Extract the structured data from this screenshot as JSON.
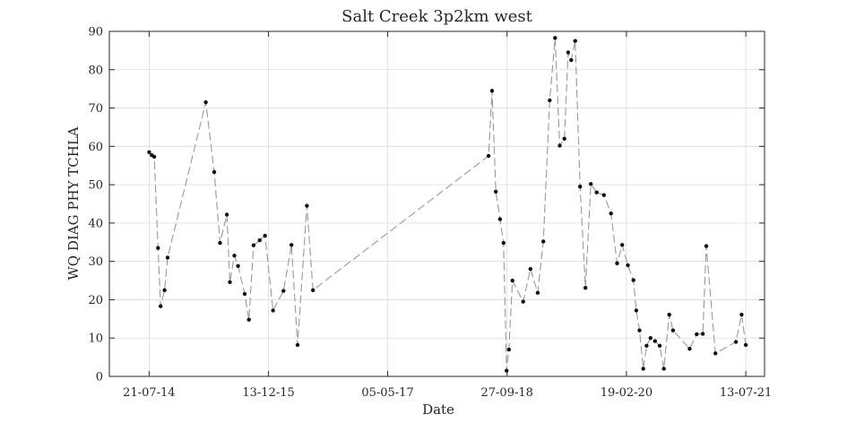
{
  "chart_data": {
    "type": "line",
    "title": "Salt Creek 3p2km west",
    "xlabel": "Date",
    "ylabel": "WQ DIAG PHY TCHLA",
    "ylim": [
      0,
      90
    ],
    "xlim": [
      "2014-02-01",
      "2021-10-01"
    ],
    "grid": true,
    "x_ticks": [
      "2014-07-21",
      "2015-12-13",
      "2017-05-05",
      "2018-09-27",
      "2020-02-19",
      "2021-07-13"
    ],
    "x_tick_labels": [
      "21-07-14",
      "13-12-15",
      "05-05-17",
      "27-09-18",
      "19-02-20",
      "13-07-21"
    ],
    "y_ticks": [
      0,
      10,
      20,
      30,
      40,
      50,
      60,
      70,
      80,
      90
    ],
    "y_tick_labels": [
      "0",
      "10",
      "20",
      "30",
      "40",
      "50",
      "60",
      "70",
      "80",
      "90"
    ],
    "line_color": "#999999",
    "marker_color": "#111111",
    "series": [
      {
        "points": [
          [
            "2014-07-21",
            58.5
          ],
          [
            "2014-08-01",
            57.7
          ],
          [
            "2014-08-12",
            57.3
          ],
          [
            "2014-08-28",
            33.5
          ],
          [
            "2014-09-08",
            18.3
          ],
          [
            "2014-09-25",
            22.5
          ],
          [
            "2014-10-08",
            31.0
          ],
          [
            "2015-03-20",
            71.5
          ],
          [
            "2015-04-25",
            53.3
          ],
          [
            "2015-05-20",
            34.8
          ],
          [
            "2015-06-18",
            42.2
          ],
          [
            "2015-07-01",
            24.6
          ],
          [
            "2015-07-20",
            31.5
          ],
          [
            "2015-08-05",
            28.8
          ],
          [
            "2015-09-02",
            21.5
          ],
          [
            "2015-09-20",
            14.8
          ],
          [
            "2015-10-10",
            34.2
          ],
          [
            "2015-11-05",
            35.5
          ],
          [
            "2015-11-28",
            36.7
          ],
          [
            "2016-01-01",
            17.2
          ],
          [
            "2016-02-15",
            22.3
          ],
          [
            "2016-03-20",
            34.3
          ],
          [
            "2016-04-15",
            8.2
          ],
          [
            "2016-05-25",
            44.5
          ],
          [
            "2016-06-20",
            22.5
          ],
          [
            "2018-07-10",
            57.5
          ],
          [
            "2018-07-25",
            74.5
          ],
          [
            "2018-08-10",
            48.2
          ],
          [
            "2018-08-28",
            41.0
          ],
          [
            "2018-09-12",
            34.8
          ],
          [
            "2018-09-25",
            1.5
          ],
          [
            "2018-10-05",
            7.0
          ],
          [
            "2018-10-20",
            25.0
          ],
          [
            "2018-12-05",
            19.5
          ],
          [
            "2019-01-05",
            28.0
          ],
          [
            "2019-02-05",
            21.8
          ],
          [
            "2019-03-01",
            35.2
          ],
          [
            "2019-03-28",
            72.0
          ],
          [
            "2019-04-20",
            88.3
          ],
          [
            "2019-05-10",
            60.2
          ],
          [
            "2019-05-30",
            62.0
          ],
          [
            "2019-06-15",
            84.5
          ],
          [
            "2019-06-28",
            82.5
          ],
          [
            "2019-07-15",
            87.5
          ],
          [
            "2019-08-05",
            49.5
          ],
          [
            "2019-08-28",
            23.1
          ],
          [
            "2019-09-20",
            50.2
          ],
          [
            "2019-10-15",
            48.0
          ],
          [
            "2019-11-15",
            47.3
          ],
          [
            "2019-12-15",
            42.5
          ],
          [
            "2020-01-10",
            29.5
          ],
          [
            "2020-02-01",
            34.3
          ],
          [
            "2020-02-25",
            29.0
          ],
          [
            "2020-03-20",
            25.1
          ],
          [
            "2020-04-01",
            17.2
          ],
          [
            "2020-04-15",
            12.0
          ],
          [
            "2020-05-01",
            2.0
          ],
          [
            "2020-05-15",
            8.0
          ],
          [
            "2020-06-01",
            10.0
          ],
          [
            "2020-06-20",
            9.2
          ],
          [
            "2020-07-10",
            8.0
          ],
          [
            "2020-07-28",
            2.0
          ],
          [
            "2020-08-20",
            16.1
          ],
          [
            "2020-09-05",
            12.0
          ],
          [
            "2020-11-15",
            7.2
          ],
          [
            "2020-12-15",
            11.0
          ],
          [
            "2021-01-10",
            11.1
          ],
          [
            "2021-01-25",
            34.0
          ],
          [
            "2021-03-05",
            6.0
          ],
          [
            "2021-06-01",
            9.0
          ],
          [
            "2021-06-25",
            16.1
          ],
          [
            "2021-07-13",
            8.2
          ]
        ]
      }
    ]
  }
}
